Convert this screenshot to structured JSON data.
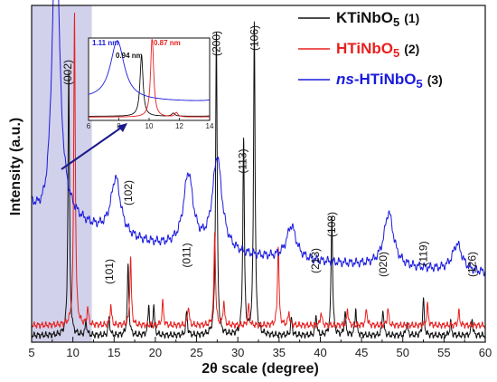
{
  "chart_data": {
    "type": "line",
    "xlabel": "2θ scale (degree)",
    "ylabel": "Intensity (a.u.)",
    "xlim": [
      5,
      60
    ],
    "xticks": [
      "5",
      "10",
      "15",
      "20",
      "25",
      "30",
      "35",
      "40",
      "45",
      "50",
      "55",
      "60"
    ],
    "y_ticks_shown": false,
    "highlight_region": [
      5,
      12.3
    ],
    "legend_placement": "top-right",
    "series": [
      {
        "name": "KTiNbO5",
        "legend_formula": "KTiNbO",
        "legend_sub": "5",
        "legend_num": "(1)",
        "color": "#111111",
        "peaks": [
          {
            "x": 9.5,
            "y": 0.78
          },
          {
            "x": 11.6,
            "y": 0.04
          },
          {
            "x": 14.4,
            "y": 0.05
          },
          {
            "x": 16.7,
            "y": 0.21
          },
          {
            "x": 19.2,
            "y": 0.09
          },
          {
            "x": 19.8,
            "y": 0.09
          },
          {
            "x": 23.8,
            "y": 0.07
          },
          {
            "x": 27.4,
            "y": 0.9
          },
          {
            "x": 30.7,
            "y": 0.58
          },
          {
            "x": 32.0,
            "y": 0.93
          },
          {
            "x": 36.5,
            "y": 0.05
          },
          {
            "x": 39.5,
            "y": 0.06
          },
          {
            "x": 41.4,
            "y": 0.36
          },
          {
            "x": 43.0,
            "y": 0.07
          },
          {
            "x": 44.3,
            "y": 0.08
          },
          {
            "x": 47.6,
            "y": 0.08
          },
          {
            "x": 50.5,
            "y": 0.04
          },
          {
            "x": 52.5,
            "y": 0.11
          },
          {
            "x": 55.8,
            "y": 0.04
          },
          {
            "x": 58.4,
            "y": 0.05
          }
        ],
        "baseline": 0.02
      },
      {
        "name": "HTiNbO5",
        "legend_formula": "HTiNbO",
        "legend_sub": "5",
        "legend_num": "(2)",
        "color": "#e8201f",
        "peaks": [
          {
            "x": 10.2,
            "y": 0.93
          },
          {
            "x": 11.8,
            "y": 0.05
          },
          {
            "x": 14.6,
            "y": 0.06
          },
          {
            "x": 17.0,
            "y": 0.2
          },
          {
            "x": 20.9,
            "y": 0.07
          },
          {
            "x": 24.0,
            "y": 0.06
          },
          {
            "x": 27.2,
            "y": 0.28
          },
          {
            "x": 28.3,
            "y": 0.07
          },
          {
            "x": 31.3,
            "y": 0.06
          },
          {
            "x": 34.9,
            "y": 0.24
          },
          {
            "x": 36.2,
            "y": 0.04
          },
          {
            "x": 40.1,
            "y": 0.04
          },
          {
            "x": 43.3,
            "y": 0.05
          },
          {
            "x": 45.6,
            "y": 0.05
          },
          {
            "x": 48.2,
            "y": 0.05
          },
          {
            "x": 53.0,
            "y": 0.06
          },
          {
            "x": 56.8,
            "y": 0.04
          }
        ],
        "baseline": 0.05
      },
      {
        "name": "ns-HTiNbO5",
        "legend_prefix": "ns",
        "legend_formula": "-HTiNbO",
        "legend_sub": "5",
        "legend_num": "(3)",
        "color": "#1a1adf",
        "peaks": [
          {
            "x": 7.9,
            "y": 0.92
          },
          {
            "x": 15.2,
            "y": 0.17
          },
          {
            "x": 24.0,
            "y": 0.22
          },
          {
            "x": 27.5,
            "y": 0.28
          },
          {
            "x": 36.5,
            "y": 0.1
          },
          {
            "x": 48.3,
            "y": 0.16
          },
          {
            "x": 56.6,
            "y": 0.08
          }
        ],
        "baseline": 0.28
      }
    ],
    "peak_labels": [
      {
        "text": "(002)",
        "x": 9.4
      },
      {
        "text": "(101)",
        "x": 14.4
      },
      {
        "text": "(102)",
        "x": 16.7
      },
      {
        "text": "(011)",
        "x": 23.8
      },
      {
        "text": "(200)",
        "x": 27.4
      },
      {
        "text": "(113)",
        "x": 30.6
      },
      {
        "text": "(106)",
        "x": 32.0
      },
      {
        "text": "(213)",
        "x": 39.4
      },
      {
        "text": "(108)",
        "x": 41.4
      },
      {
        "text": "(020)",
        "x": 47.6
      },
      {
        "text": "(119)",
        "x": 52.5
      },
      {
        "text": "(126)",
        "x": 58.4
      }
    ],
    "inset": {
      "xlim": [
        6,
        14
      ],
      "xticks": [
        "6",
        "8",
        "10",
        "12",
        "14"
      ],
      "annotations": [
        {
          "text": "1.11 nm",
          "color": "#1a1adf"
        },
        {
          "text": "0.87 nm",
          "color": "#e8201f"
        },
        {
          "text": "0.94 nm",
          "color": "#111111"
        }
      ]
    }
  }
}
